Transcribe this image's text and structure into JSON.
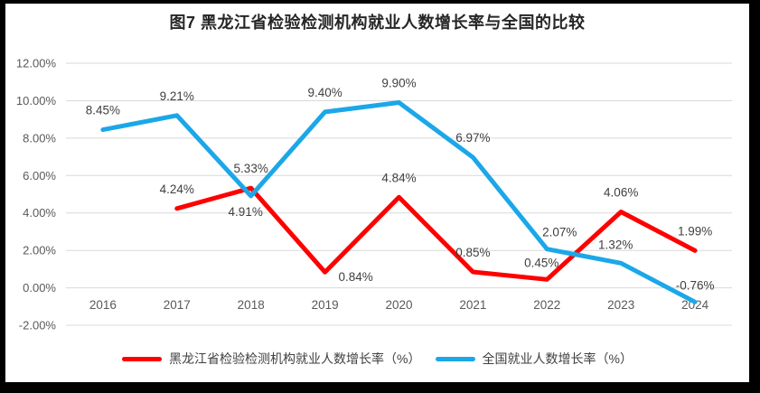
{
  "figure": {
    "title": "图7 黑龙江省检验检测机构就业人数增长率与全国的比较"
  },
  "chart_data": {
    "type": "line",
    "title": "图7 黑龙江省检验检测机构就业人数增长率与全国的比较",
    "categories": [
      "2016",
      "2017",
      "2018",
      "2019",
      "2020",
      "2021",
      "2022",
      "2023",
      "2024"
    ],
    "series": [
      {
        "id": "heilongjiang",
        "name": "黑龙江省检验检测机构就业人数增长率（%）",
        "color": "#FF0000",
        "values": [
          null,
          4.24,
          5.33,
          0.84,
          4.84,
          0.85,
          0.45,
          4.06,
          1.99
        ],
        "point_labels": [
          "",
          "4.24%",
          "5.33%",
          "0.84%",
          "4.84%",
          "0.85%",
          "0.45%",
          "4.06%",
          "1.99%"
        ]
      },
      {
        "id": "national",
        "name": "全国就业人数增长率（%）",
        "color": "#1BA7E8",
        "values": [
          8.45,
          9.21,
          4.91,
          9.4,
          9.9,
          6.97,
          2.07,
          1.32,
          -0.76
        ],
        "point_labels": [
          "8.45%",
          "9.21%",
          "4.91%",
          "9.40%",
          "9.90%",
          "6.97%",
          "2.07%",
          "1.32%",
          "-0.76%"
        ]
      }
    ],
    "ylim": [
      -2,
      12
    ],
    "ytick_step": 2,
    "ytick_labels": [
      "12.00%",
      "10.00%",
      "8.00%",
      "6.00%",
      "4.00%",
      "2.00%",
      "0.00%",
      "-2.00%"
    ],
    "grid": true,
    "legend_position": "bottom",
    "gridline_color": "#D9D9D9",
    "axis_text_color": "#595959",
    "label_text_color": "#3F3F3F",
    "label_offset_overrides": {
      "heilongjiang": {
        "3": [
          34,
          10
        ],
        "6": [
          -6,
          -14
        ]
      },
      "national": {
        "2": [
          -6,
          22
        ],
        "6": [
          14,
          -14
        ],
        "7": [
          -6,
          -16
        ],
        "8": [
          0,
          -14
        ]
      }
    }
  }
}
